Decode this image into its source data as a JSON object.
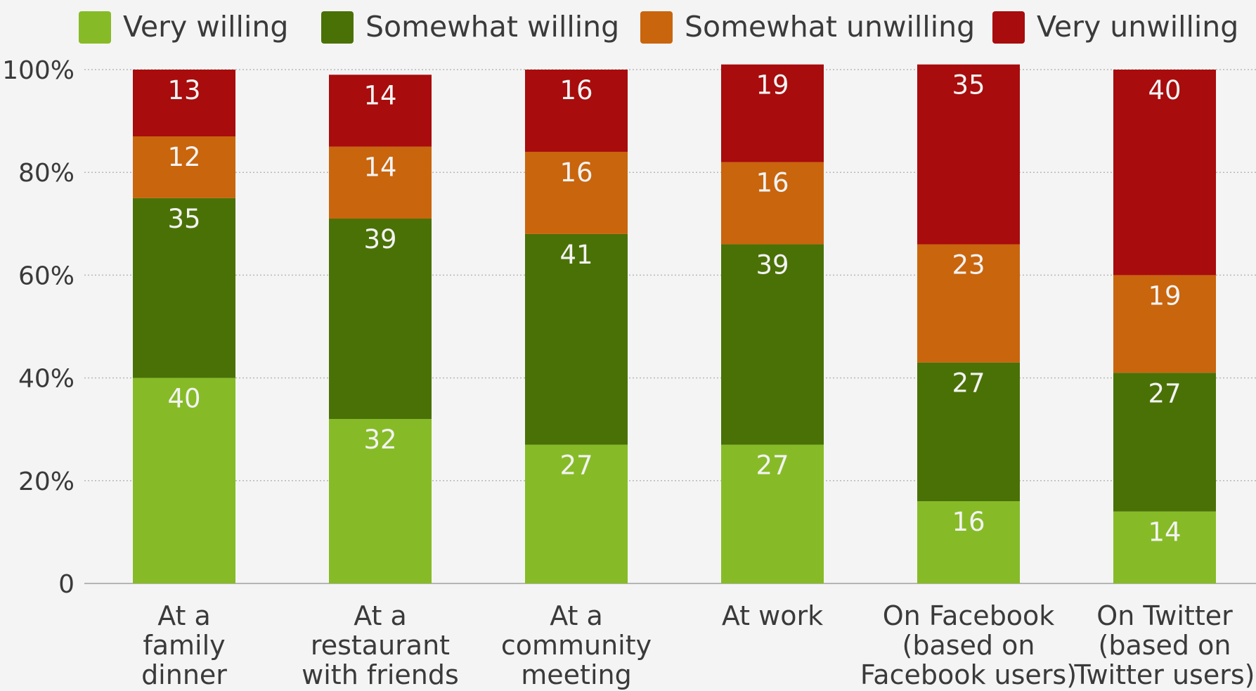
{
  "chart_data": {
    "type": "bar",
    "stacked": true,
    "categories": [
      [
        "At a",
        "family",
        "dinner"
      ],
      [
        "At a",
        "restaurant",
        "with friends"
      ],
      [
        "At a",
        "community",
        "meeting"
      ],
      [
        "At work"
      ],
      [
        "On Facebook",
        "(based on",
        "Facebook users)"
      ],
      [
        "On Twitter",
        "(based on",
        "Twitter users)"
      ]
    ],
    "series": [
      {
        "name": "Very willing",
        "color": "#86bb27",
        "values": [
          40,
          32,
          27,
          27,
          16,
          14
        ]
      },
      {
        "name": "Somewhat willing",
        "color": "#4a7106",
        "values": [
          35,
          39,
          41,
          39,
          27,
          27
        ]
      },
      {
        "name": "Somewhat unwilling",
        "color": "#c9650d",
        "values": [
          12,
          14,
          16,
          16,
          23,
          19
        ]
      },
      {
        "name": "Very unwilling",
        "color": "#a80c0c",
        "values": [
          13,
          14,
          16,
          19,
          35,
          40
        ]
      }
    ],
    "yticks": [
      "0",
      "20%",
      "40%",
      "60%",
      "80%",
      "100%"
    ],
    "ytick_values": [
      0,
      20,
      40,
      60,
      80,
      100
    ],
    "ylim": [
      0,
      100
    ],
    "grid": true,
    "legend_position": "top"
  }
}
